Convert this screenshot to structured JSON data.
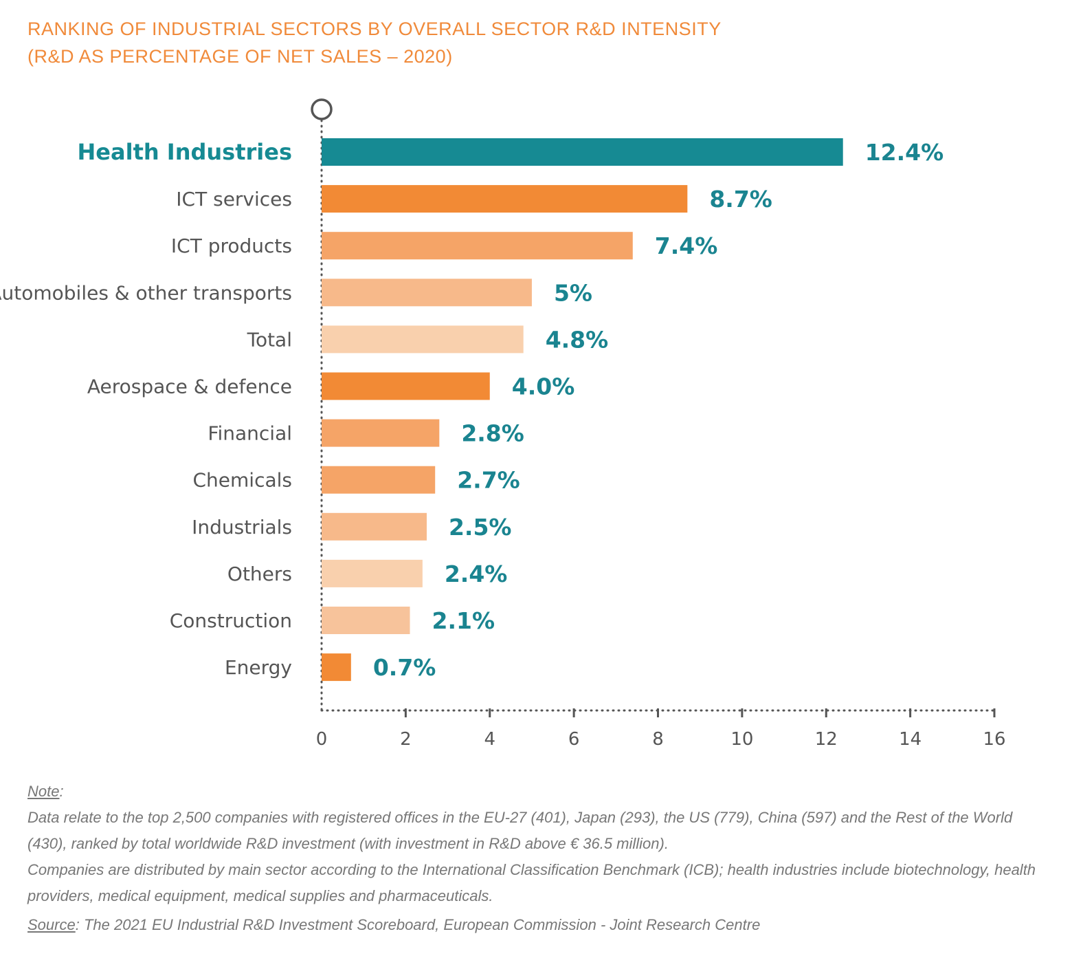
{
  "title": {
    "line1": "RANKING OF INDUSTRIAL SECTORS BY OVERALL SECTOR R&D INTENSITY",
    "line2": "(R&D AS PERCENTAGE OF NET SALES – 2020)"
  },
  "chart_data": {
    "type": "bar",
    "orientation": "horizontal",
    "categories": [
      "Health Industries",
      "ICT services",
      "ICT products",
      "Automobiles & other transports",
      "Total",
      "Aerospace & defence",
      "Financial",
      "Chemicals",
      "Industrials",
      "Others",
      "Construction",
      "Energy"
    ],
    "values": [
      12.4,
      8.7,
      7.4,
      5,
      4.8,
      4.0,
      2.8,
      2.7,
      2.5,
      2.4,
      2.1,
      0.7
    ],
    "value_labels": [
      "12.4%",
      "8.7%",
      "7.4%",
      "5%",
      "4.8%",
      "4.0%",
      "2.8%",
      "2.7%",
      "2.5%",
      "2.4%",
      "2.1%",
      "0.7%"
    ],
    "bar_colors": [
      "#168a93",
      "#f28a35",
      "#f5a467",
      "#f7b98a",
      "#f9d0ad",
      "#f28a35",
      "#f5a467",
      "#f5a467",
      "#f7b98a",
      "#f9d0ad",
      "#f7c39b",
      "#f28a35"
    ],
    "highlight_category": "Health Industries",
    "xlim": [
      0,
      16
    ],
    "xticks": [
      0,
      2,
      4,
      6,
      8,
      10,
      12,
      14,
      16
    ],
    "xlabel": "",
    "ylabel": "",
    "grid": false,
    "colors": {
      "highlight": "#168a93",
      "value_label": "#1a8490",
      "category_label": "#555555",
      "axis": "#555555",
      "title": "#f08a3a"
    }
  },
  "notes": {
    "note_heading": "Note",
    "note_line1": "Data relate to the top 2,500 companies with registered offices in the EU-27 (401), Japan (293), the US (779), China (597) and the Rest of the World (430), ranked by total worldwide R&D investment (with investment in R&D above € 36.5 million).",
    "note_line2": "Companies are distributed by main sector according to the International Classification Benchmark (ICB); health industries include biotechnology, health providers, medical equipment, medical supplies and pharmaceuticals.",
    "source_heading": "Source",
    "source_text": "The 2021 EU Industrial R&D Investment Scoreboard, European Commission - Joint Research Centre"
  }
}
